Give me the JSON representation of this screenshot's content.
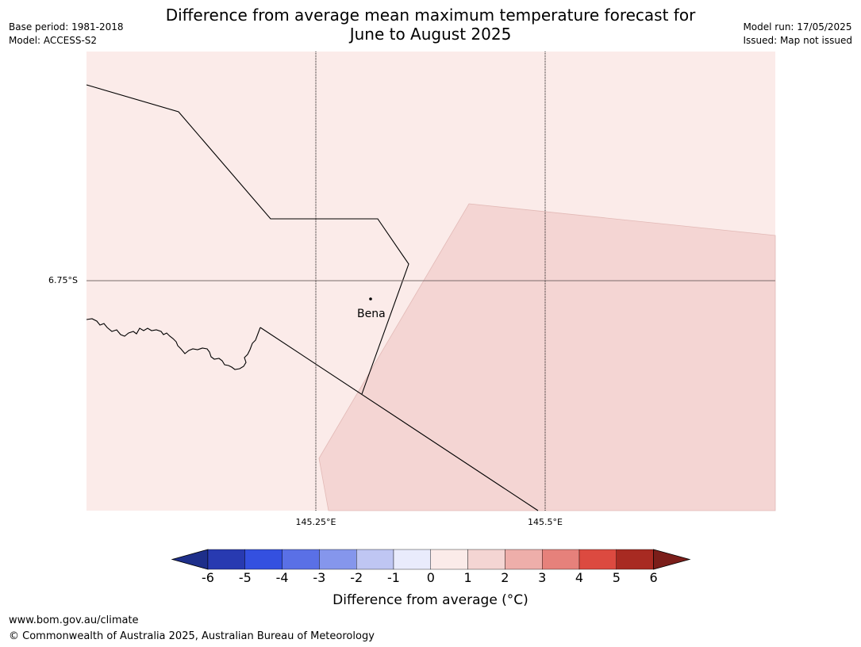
{
  "title_line1": "Difference from average mean maximum temperature forecast for",
  "title_line2": "June to August 2025",
  "meta_left": {
    "base_period": "Base period: 1981-2018",
    "model": "Model: ACCESS-S2"
  },
  "meta_right": {
    "model_run": "Model run: 17/05/2025",
    "issued": "Issued: Map not issued"
  },
  "map": {
    "latitude_label": "6.75°S",
    "longitude_labels": [
      "145.25°E",
      "145.5°E"
    ],
    "place": {
      "name": "Bena",
      "icon": "location-dot-icon"
    },
    "colors": {
      "background_zone": "#fbebe9",
      "warmer_zone": "#f4d5d3",
      "grid": "#000000"
    }
  },
  "colorbar": {
    "ticks": [
      "-6",
      "-5",
      "-4",
      "-3",
      "-2",
      "-1",
      "0",
      "1",
      "2",
      "3",
      "4",
      "5",
      "6"
    ],
    "colors": [
      "#1e2f8a",
      "#283ab1",
      "#3450e0",
      "#5a70e6",
      "#8596ec",
      "#bfc6f3",
      "#e9ebfc",
      "#fbebe9",
      "#f4d5d3",
      "#eeaeaa",
      "#e6817b",
      "#dc4a40",
      "#a82a22",
      "#7b1e1a"
    ],
    "label": "Difference from average (°C)"
  },
  "footer": {
    "website": "www.bom.gov.au/climate",
    "copyright": "© Commonwealth of Australia 2025, Australian Bureau of Meteorology"
  }
}
